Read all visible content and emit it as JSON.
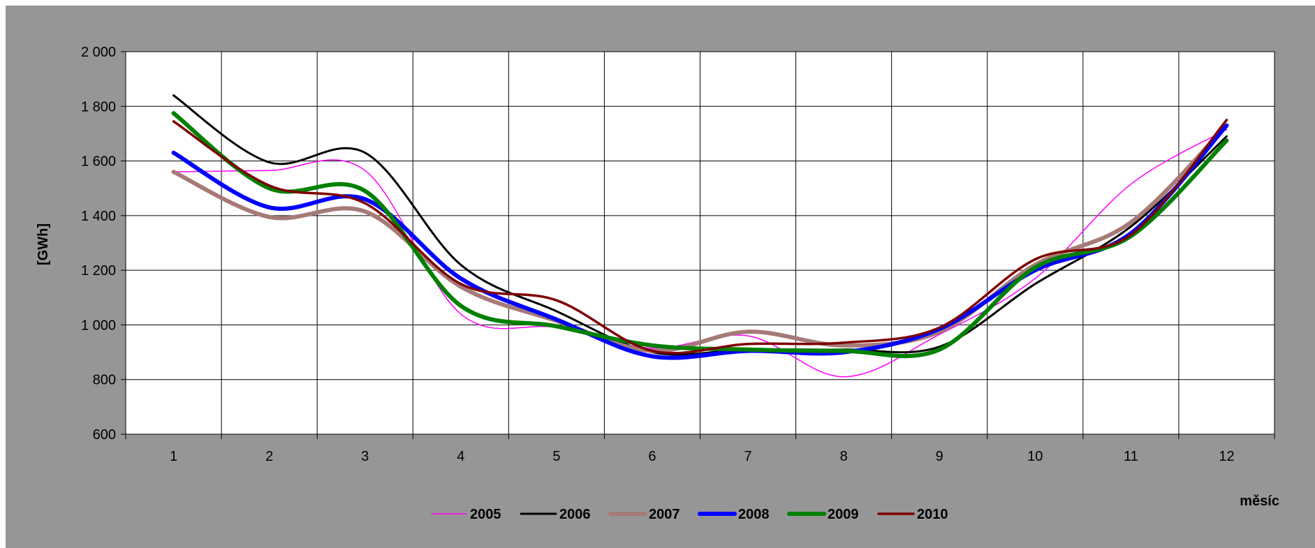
{
  "chart_data": {
    "type": "line",
    "title": "",
    "xlabel": "měsíc",
    "ylabel": "[GWh]",
    "categories": [
      "1",
      "2",
      "3",
      "4",
      "5",
      "6",
      "7",
      "8",
      "9",
      "10",
      "11",
      "12"
    ],
    "y_ticks": [
      "600",
      "800",
      "1 000",
      "1 200",
      "1 400",
      "1 600",
      "1 800",
      "2 000"
    ],
    "ylim": [
      600,
      2000
    ],
    "grid": true,
    "legend_position": "bottom",
    "series": [
      {
        "name": "2005",
        "color": "#ff00ff",
        "values": [
          1560,
          1565,
          1565,
          1040,
          990,
          915,
          960,
          810,
          965,
          1170,
          1515,
          1715
        ]
      },
      {
        "name": "2006",
        "color": "#000000",
        "values": [
          1840,
          1595,
          1630,
          1220,
          1050,
          900,
          910,
          910,
          920,
          1150,
          1360,
          1690
        ]
      },
      {
        "name": "2007",
        "color": "#a67a77",
        "values": [
          1560,
          1395,
          1415,
          1140,
          1015,
          905,
          975,
          925,
          975,
          1220,
          1375,
          1730
        ]
      },
      {
        "name": "2008",
        "color": "#0000ff",
        "values": [
          1630,
          1430,
          1460,
          1170,
          1020,
          885,
          905,
          900,
          985,
          1200,
          1335,
          1730
        ]
      },
      {
        "name": "2009",
        "color": "#008000",
        "values": [
          1775,
          1500,
          1490,
          1070,
          995,
          925,
          910,
          905,
          910,
          1210,
          1325,
          1675
        ]
      },
      {
        "name": "2010",
        "color": "#7f0000",
        "values": [
          1745,
          1510,
          1445,
          1150,
          1090,
          905,
          930,
          935,
          990,
          1240,
          1330,
          1750
        ]
      }
    ],
    "stroke_widths": {
      "2005": 1.5,
      "2006": 3,
      "2007": 6,
      "2008": 6,
      "2009": 6,
      "2010": 3.5
    }
  },
  "colors": {
    "outer_background": "#969696",
    "plot_background": "#ffffff",
    "grid": "#000000"
  }
}
